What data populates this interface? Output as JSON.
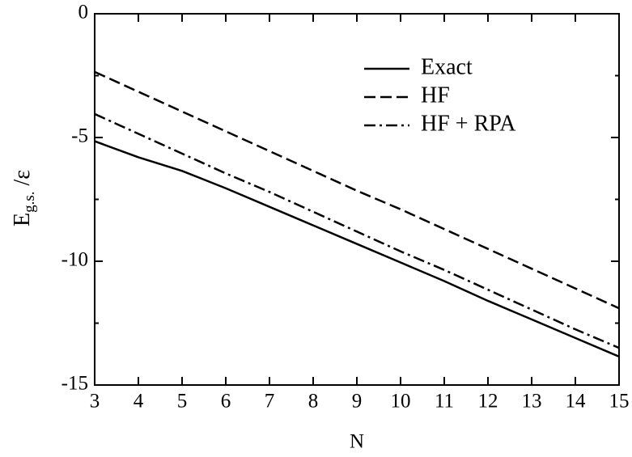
{
  "chart_data": {
    "type": "line",
    "xlabel": "N",
    "ylabel": {
      "main": "E",
      "sub": "g.s.",
      "rest": " /ε"
    },
    "x": [
      3,
      4,
      5,
      6,
      7,
      8,
      9,
      10,
      11,
      12,
      13,
      14,
      15
    ],
    "series": [
      {
        "name": "Exact",
        "color": "#000000",
        "dash": "solid",
        "values": [
          -5.15,
          -5.8,
          -6.35,
          -7.05,
          -7.8,
          -8.55,
          -9.3,
          -10.05,
          -10.8,
          -11.6,
          -12.35,
          -13.1,
          -13.85
        ]
      },
      {
        "name": "HF",
        "color": "#000000",
        "dash": "dashed",
        "values": [
          -2.35,
          -3.15,
          -3.95,
          -4.75,
          -5.55,
          -6.35,
          -7.15,
          -7.9,
          -8.7,
          -9.5,
          -10.3,
          -11.1,
          -11.9
        ]
      },
      {
        "name": "HF + RPA",
        "color": "#000000",
        "dash": "dashdot",
        "values": [
          -4.05,
          -4.85,
          -5.65,
          -6.45,
          -7.2,
          -8.0,
          -8.8,
          -9.6,
          -10.35,
          -11.15,
          -11.95,
          -12.75,
          -13.5
        ]
      }
    ],
    "xlim": [
      3,
      15
    ],
    "xticks": [
      3,
      4,
      5,
      6,
      7,
      8,
      9,
      10,
      11,
      12,
      13,
      14,
      15
    ],
    "ylim": [
      -15,
      0
    ],
    "yticks": [
      0,
      -5,
      -10,
      -15
    ],
    "yminorticks": [
      -2.5,
      -7.5,
      -12.5
    ],
    "legend": "upper-right"
  }
}
